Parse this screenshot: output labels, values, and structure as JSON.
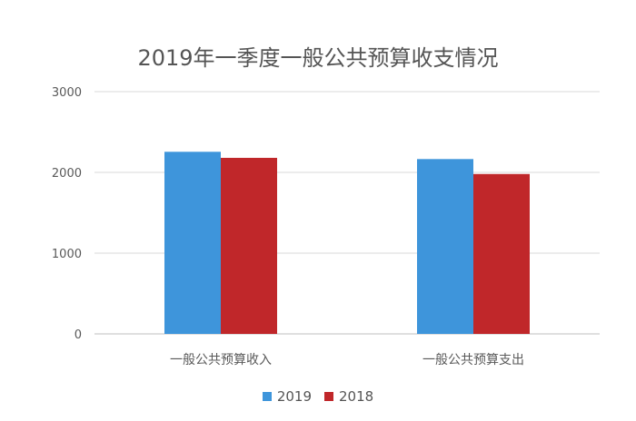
{
  "chart_data": {
    "type": "bar",
    "title": "2019年一季度一般公共预算收支情况",
    "categories": [
      "一般公共预算收入",
      "一般公共预算支出"
    ],
    "series": [
      {
        "name": "2019",
        "values": [
          2255,
          2165
        ],
        "color": "#3E95DB"
      },
      {
        "name": "2018",
        "values": [
          2180,
          1980
        ],
        "color": "#C0272A"
      }
    ],
    "ylim": [
      0,
      3000
    ],
    "yticks": [
      0,
      1000,
      2000,
      3000
    ],
    "xlabel": "",
    "ylabel": "",
    "grid": true,
    "legend_position": "bottom"
  }
}
